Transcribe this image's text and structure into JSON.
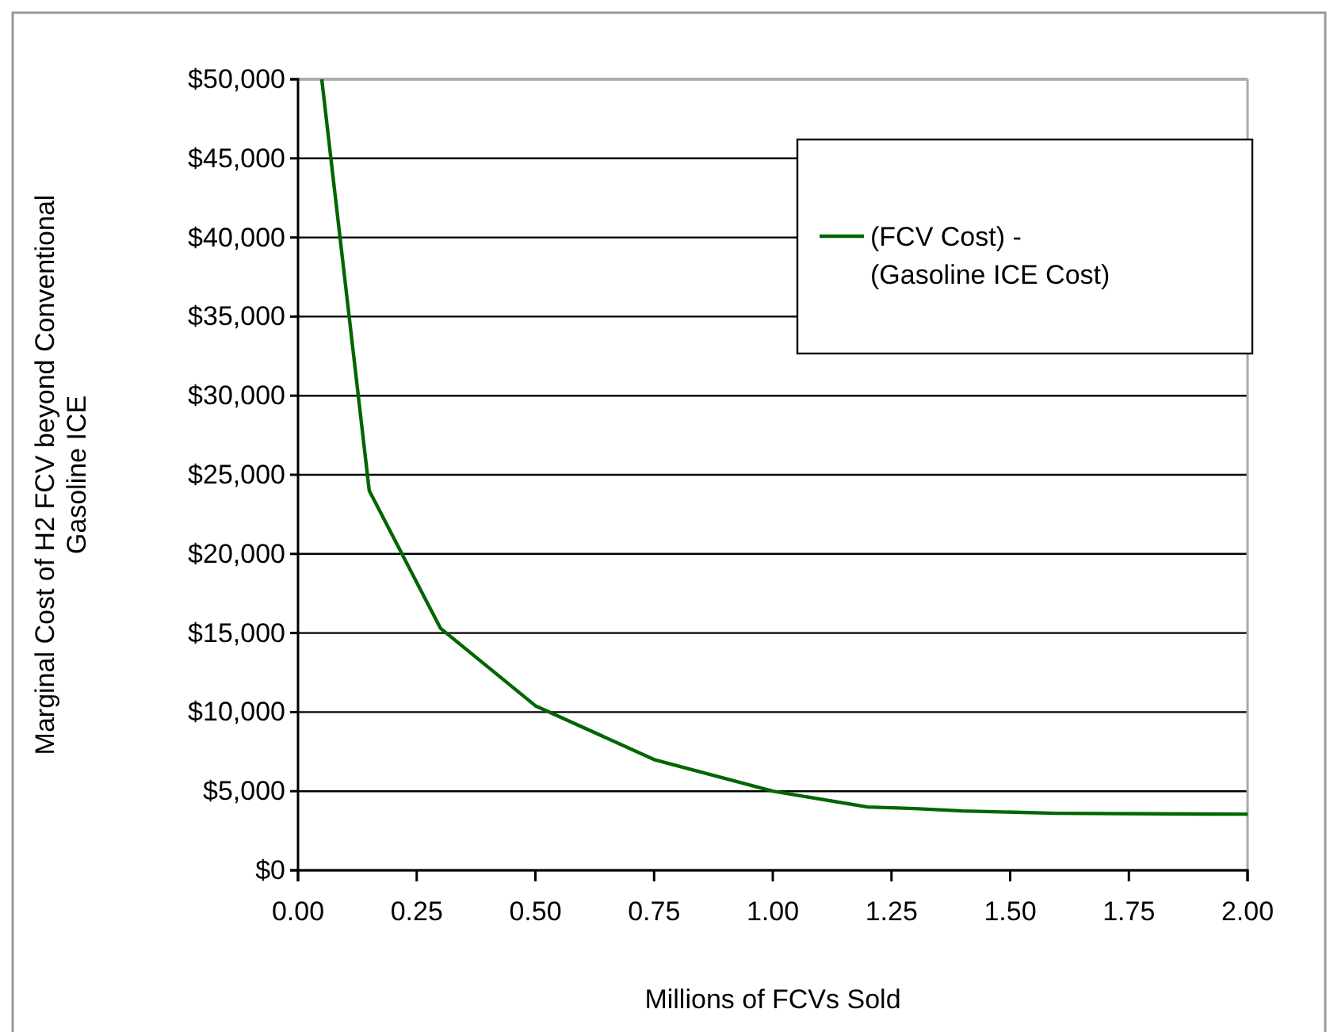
{
  "chart_data": {
    "type": "line",
    "xlabel": "Millions of FCVs Sold",
    "ylabel": "Marginal Cost of H2 FCV beyond Conventional Gasoline ICE",
    "x": [
      0.05,
      0.15,
      0.3,
      0.5,
      0.75,
      1.0,
      1.2,
      1.3,
      1.4,
      1.6,
      2.0
    ],
    "series": [
      {
        "name": "(FCV Cost) - (Gasoline ICE Cost)",
        "color": "#006600",
        "values": [
          50000,
          24000,
          15300,
          10400,
          7000,
          5000,
          4000,
          3900,
          3750,
          3600,
          3550
        ]
      }
    ],
    "xlim": [
      0,
      2
    ],
    "xticks": [
      {
        "value": 0,
        "label": "0.00"
      },
      {
        "value": 0.25,
        "label": "0.25"
      },
      {
        "value": 0.5,
        "label": "0.50"
      },
      {
        "value": 0.75,
        "label": "0.75"
      },
      {
        "value": 1,
        "label": "1.00"
      },
      {
        "value": 1.25,
        "label": "1.25"
      },
      {
        "value": 1.5,
        "label": "1.50"
      },
      {
        "value": 1.75,
        "label": "1.75"
      },
      {
        "value": 2,
        "label": "2.00"
      }
    ],
    "ylim": [
      0,
      50000
    ],
    "yticks": [
      {
        "value": 0,
        "label": "$0"
      },
      {
        "value": 5000,
        "label": "$5,000"
      },
      {
        "value": 10000,
        "label": "$10,000"
      },
      {
        "value": 15000,
        "label": "$15,000"
      },
      {
        "value": 20000,
        "label": "$20,000"
      },
      {
        "value": 25000,
        "label": "$25,000"
      },
      {
        "value": 30000,
        "label": "$30,000"
      },
      {
        "value": 35000,
        "label": "$35,000"
      },
      {
        "value": 40000,
        "label": "$40,000"
      },
      {
        "value": 45000,
        "label": "$45,000"
      },
      {
        "value": 50000,
        "label": "$50,000"
      }
    ],
    "grid": "y",
    "legend": "top right",
    "marker": "none",
    "line_style": "solid"
  }
}
